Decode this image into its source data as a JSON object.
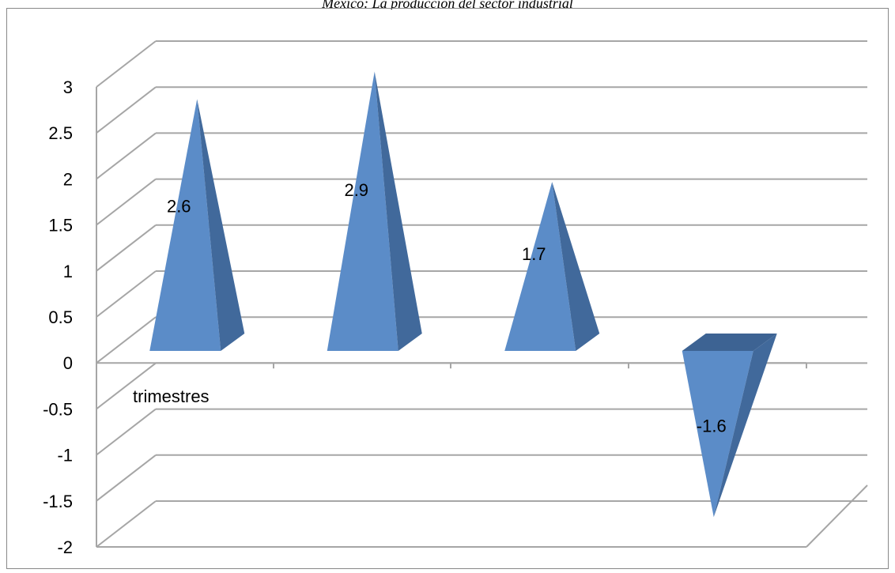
{
  "header": {
    "caption": "México: La producción del sector industrial"
  },
  "chart_data": {
    "type": "bar",
    "shape": "pyramid",
    "categories": [
      "",
      "",
      "",
      ""
    ],
    "values": [
      2.6,
      2.9,
      1.7,
      -1.6
    ],
    "data_labels": [
      "2.6",
      "2.9",
      "1.7",
      "-1.6"
    ],
    "title": "",
    "xlabel": "trimestres",
    "ylabel": "",
    "ylim": [
      -2,
      3
    ],
    "yticks": [
      3,
      2.5,
      2,
      1.5,
      1,
      0.5,
      0,
      -0.5,
      -1,
      -1.5,
      -2
    ],
    "ytick_labels": [
      "3",
      "2.5",
      "2",
      "1.5",
      "1",
      "0.5",
      "0",
      "-0.5",
      "-1",
      "-1.5",
      "-2"
    ],
    "grid": true,
    "legend": "none",
    "colors": {
      "front": "#5b8cc8",
      "side": "#41699b",
      "top": "#3d6393",
      "grid": "#a6a6a6"
    }
  }
}
